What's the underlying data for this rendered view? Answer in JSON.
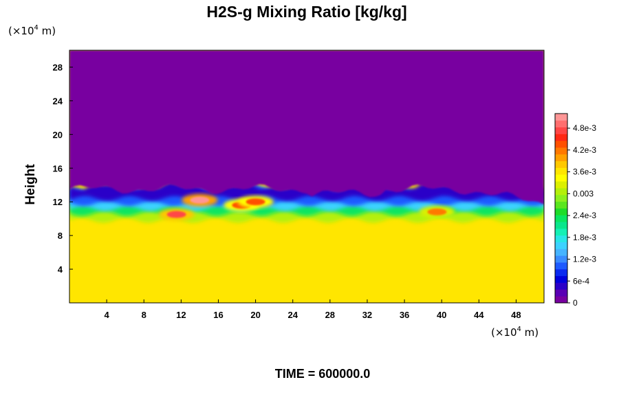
{
  "chart_data": {
    "type": "heatmap",
    "title": "H2S-g Mixing Ratio [kg/kg]",
    "xlabel": "",
    "ylabel": "Height",
    "x_unit": "(×10",
    "x_unit_exp": "4",
    "x_unit_tail": " m)",
    "y_unit": "(×10",
    "y_unit_exp": "4",
    "y_unit_tail": " m)",
    "xlim": [
      0,
      51
    ],
    "ylim": [
      0,
      30
    ],
    "x_ticks": [
      4,
      8,
      12,
      16,
      20,
      24,
      28,
      32,
      36,
      40,
      44,
      48
    ],
    "x_tick_labels": [
      "4",
      "8",
      "12",
      "16",
      "20",
      "24",
      "28",
      "32",
      "36",
      "40",
      "44",
      "48"
    ],
    "y_ticks": [
      4,
      8,
      12,
      16,
      20,
      24,
      28
    ],
    "y_tick_labels": [
      "4",
      "8",
      "12",
      "16",
      "20",
      "24",
      "28"
    ],
    "colorbar": {
      "range": [
        0,
        0.0052
      ],
      "tick_values": [
        0,
        0.0006,
        0.0012,
        0.0018,
        0.0024,
        0.003,
        0.0036,
        0.0042,
        0.0048
      ],
      "tick_labels": [
        "0",
        "6e-4",
        "1.2e-3",
        "1.8e-3",
        "2.4e-3",
        "0.003",
        "3.6e-3",
        "4.2e-3",
        "4.8e-3"
      ],
      "colors": [
        "#7800a0",
        "#5a00b4",
        "#2a00c8",
        "#0000dc",
        "#0a2af0",
        "#1e5aff",
        "#3a8cff",
        "#46b4ff",
        "#3cd2ff",
        "#28e6e6",
        "#14f0b4",
        "#0ae68c",
        "#0ae660",
        "#1edc28",
        "#5ae61e",
        "#8cf01e",
        "#b4f00a",
        "#dcf000",
        "#ffff00",
        "#ffe600",
        "#ffc800",
        "#ffa000",
        "#ff7800",
        "#ff5000",
        "#ff2814",
        "#ff4646",
        "#ff6e6e",
        "#ff9696"
      ]
    },
    "regions": [
      {
        "name": "upper",
        "y_range": [
          13.5,
          30
        ],
        "value": 0
      },
      {
        "name": "transition",
        "y_range": [
          10.5,
          13.5
        ],
        "value": 0.0012
      },
      {
        "name": "lower",
        "y_range": [
          0,
          10
        ],
        "value": 0.0037
      }
    ],
    "hotspots": [
      {
        "x": 11.5,
        "y": 10.5,
        "value": 0.0048
      },
      {
        "x": 14,
        "y": 12.2,
        "value": 0.0052
      },
      {
        "x": 18.5,
        "y": 11.6,
        "value": 0.0043
      },
      {
        "x": 20,
        "y": 12,
        "value": 0.0044
      },
      {
        "x": 39.5,
        "y": 10.8,
        "value": 0.0042
      }
    ],
    "grid": false,
    "legend": "colorbar-right"
  },
  "footer": {
    "time_label": "TIME = 600000.0"
  }
}
